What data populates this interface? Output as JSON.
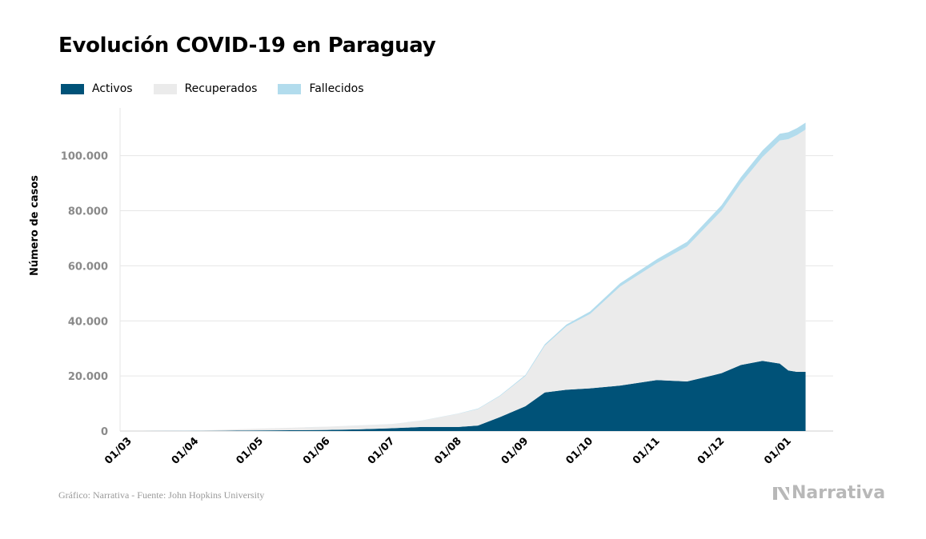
{
  "colors": {
    "activos": "#005278",
    "recuperados": "#ebebeb",
    "fallecidos": "#b2dced",
    "grid": "#e6e6e6",
    "tick_text": "#8a8a8a"
  },
  "chart_data": {
    "type": "area",
    "stacked": true,
    "title": "Evolución COVID-19 en Paraguay",
    "ylabel": "Número de casos",
    "xlabel": "",
    "ylim": [
      0,
      115000
    ],
    "grid": true,
    "legend_placement": "top-left",
    "y_ticks": [
      0,
      20000,
      40000,
      60000,
      80000,
      100000
    ],
    "y_tick_labels": [
      "0",
      "20.000",
      "40.000",
      "60.000",
      "80.000",
      "100.000"
    ],
    "x_ticks": [
      "2020-03-01",
      "2020-04-01",
      "2020-05-01",
      "2020-06-01",
      "2020-07-01",
      "2020-08-01",
      "2020-09-01",
      "2020-10-01",
      "2020-11-01",
      "2020-12-01",
      "2021-01-01"
    ],
    "x_tick_labels": [
      "01/03",
      "01/04",
      "01/05",
      "01/06",
      "01/07",
      "01/08",
      "01/09",
      "01/10",
      "01/11",
      "01/12",
      "01/01"
    ],
    "x_range": [
      "2020-03-07",
      "2021-01-09"
    ],
    "x": [
      "2020-03-07",
      "2020-04-01",
      "2020-04-15",
      "2020-05-01",
      "2020-05-15",
      "2020-06-01",
      "2020-06-15",
      "2020-07-01",
      "2020-07-15",
      "2020-08-01",
      "2020-08-10",
      "2020-08-20",
      "2020-09-01",
      "2020-09-10",
      "2020-09-20",
      "2020-10-01",
      "2020-10-15",
      "2020-11-01",
      "2020-11-15",
      "2020-12-01",
      "2020-12-10",
      "2020-12-20",
      "2020-12-28",
      "2021-01-01",
      "2021-01-05",
      "2021-01-09"
    ],
    "series": [
      {
        "name": "Activos",
        "values": [
          0,
          60,
          100,
          200,
          300,
          400,
          600,
          1000,
          1500,
          1500,
          2000,
          5000,
          9000,
          14000,
          15000,
          15500,
          16500,
          18500,
          18000,
          21000,
          24000,
          25500,
          24500,
          22000,
          21500,
          21500
        ]
      },
      {
        "name": "Recuperados",
        "values": [
          0,
          100,
          400,
          700,
          900,
          1200,
          1400,
          1500,
          2300,
          4800,
          6000,
          7600,
          11000,
          17000,
          23000,
          27000,
          36000,
          42500,
          49000,
          59000,
          66000,
          74000,
          81000,
          84000,
          86000,
          88000
        ]
      },
      {
        "name": "Fallecidos",
        "values": [
          0,
          10,
          10,
          10,
          10,
          15,
          20,
          30,
          50,
          100,
          150,
          200,
          350,
          500,
          650,
          900,
          1200,
          1400,
          1700,
          2000,
          2200,
          2400,
          2450,
          2500,
          2500,
          2500
        ]
      }
    ]
  },
  "source": "Gráfico: Narrativa - Fuente: John Hopkins University",
  "brand": {
    "name": "Narrativa",
    "icon": "narrativa-logo-icon"
  }
}
